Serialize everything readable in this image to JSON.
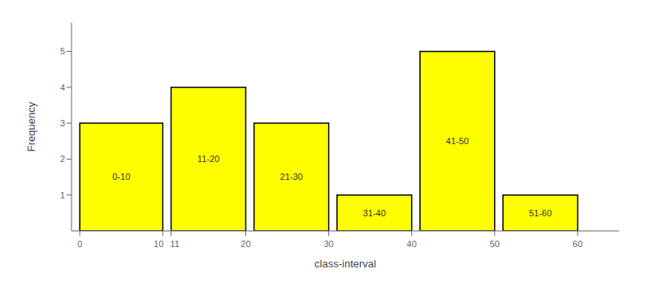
{
  "chart_data": {
    "type": "bar",
    "categories": [
      "0-10",
      "11-20",
      "21-30",
      "31-40",
      "41-50",
      "51-60"
    ],
    "x": [
      0,
      11,
      21,
      31,
      41,
      51
    ],
    "widths": [
      10,
      9,
      9,
      9,
      9,
      9
    ],
    "values": [
      3,
      4,
      3,
      1,
      5,
      1
    ],
    "color": "#FFFF00",
    "xlabel": "class-interval",
    "ylabel": "Frequency",
    "xlim": [
      -1,
      65
    ],
    "ylim": [
      0,
      5.8
    ],
    "xticks": [
      0,
      10,
      11,
      20,
      30,
      40,
      50,
      60
    ],
    "yticks": [
      1,
      2,
      3,
      4,
      5
    ],
    "grid": false
  }
}
